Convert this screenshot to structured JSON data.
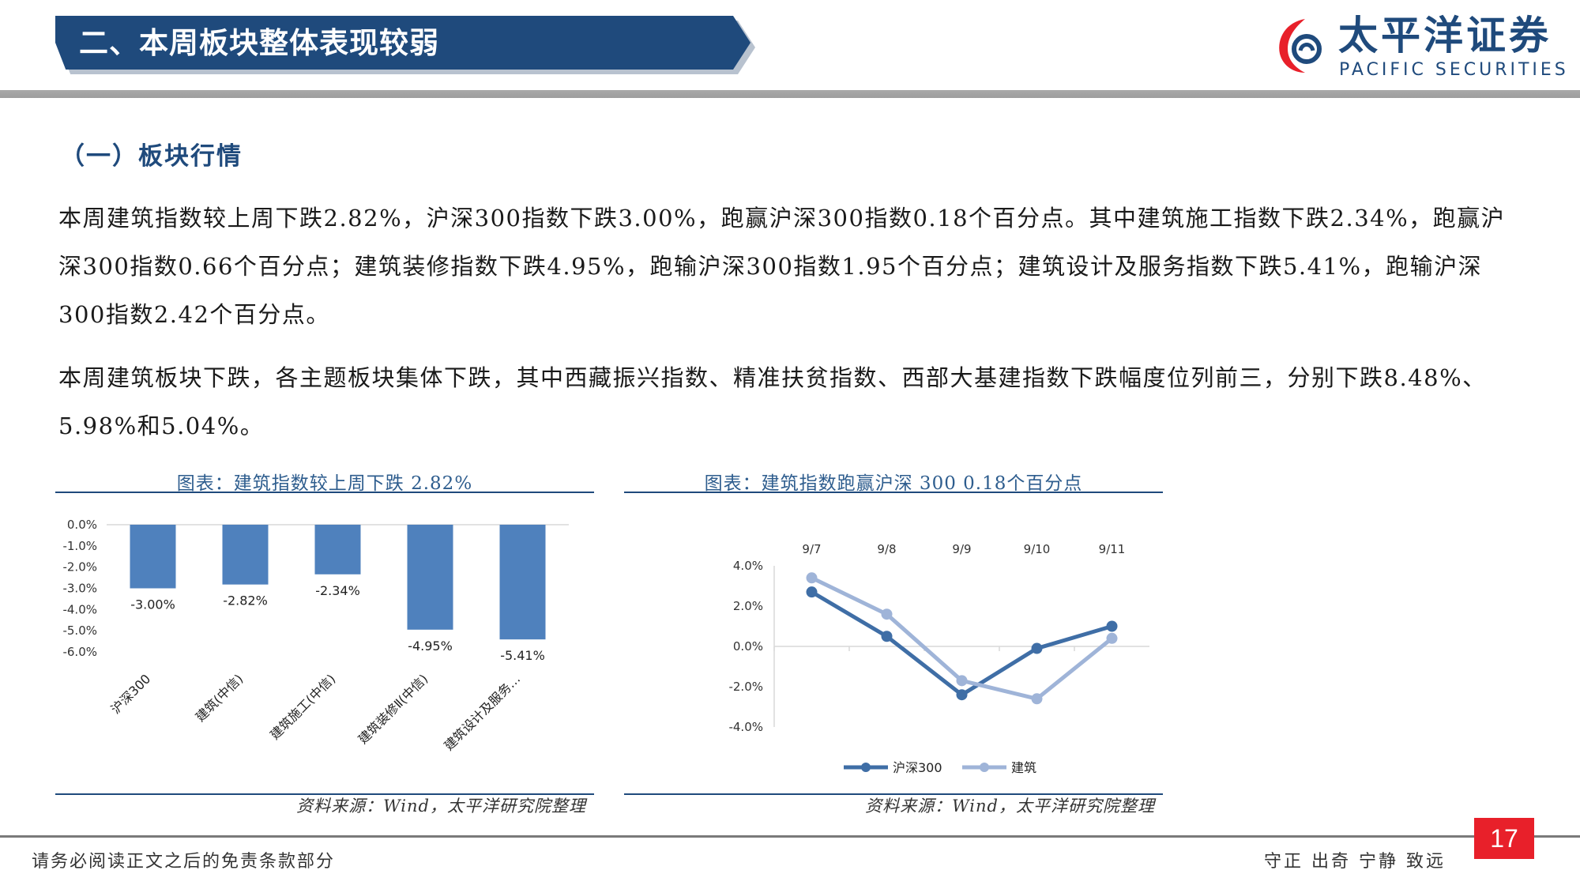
{
  "header": {
    "title": "二、本周板块整体表现较弱",
    "logo_cn": "太平洋证券",
    "logo_en": "PACIFIC SECURITIES"
  },
  "section_heading": "（一）板块行情",
  "paragraphs": [
    "本周建筑指数较上周下跌2.82%，沪深300指数下跌3.00%，跑赢沪深300指数0.18个百分点。其中建筑施工指数下跌2.34%，跑赢沪深300指数0.66个百分点；建筑装修指数下跌4.95%，跑输沪深300指数1.95个百分点；建筑设计及服务指数下跌5.41%，跑输沪深300指数2.42个百分点。",
    "本周建筑板块下跌，各主题板块集体下跌，其中西藏振兴指数、精准扶贫指数、西部大基建指数下跌幅度位列前三，分别下跌8.48%、5.98%和5.04%。"
  ],
  "charts": {
    "left": {
      "title": "图表：建筑指数较上周下跌 2.82%",
      "source": "资料来源：Wind，太平洋研究院整理"
    },
    "right": {
      "title": "图表：建筑指数跑赢沪深 300 0.18个百分点",
      "source": "资料来源：Wind，太平洋研究院整理"
    }
  },
  "chart_data": [
    {
      "type": "bar",
      "categories": [
        "沪深300",
        "建筑(中信)",
        "建筑施工(中信)",
        "建筑装修Ⅱ(中信)",
        "建筑设计及服务…"
      ],
      "values": [
        -3.0,
        -2.82,
        -2.34,
        -4.95,
        -5.41
      ],
      "data_labels": [
        "-3.00%",
        "-2.82%",
        "-2.34%",
        "-4.95%",
        "-5.41%"
      ],
      "ylim": [
        -6.0,
        0.0
      ],
      "yticks": [
        0.0,
        -1.0,
        -2.0,
        -3.0,
        -4.0,
        -5.0,
        -6.0
      ],
      "ytick_labels": [
        "0.0%",
        "-1.0%",
        "-2.0%",
        "-3.0%",
        "-4.0%",
        "-5.0%",
        "-6.0%"
      ],
      "bar_color": "#4f81bd",
      "legend": "none"
    },
    {
      "type": "line",
      "x": [
        "9/7",
        "9/8",
        "9/9",
        "9/10",
        "9/11"
      ],
      "series": [
        {
          "name": "沪深300",
          "values": [
            2.7,
            0.5,
            -2.4,
            -0.1,
            1.0
          ],
          "color": "#3f6ea6"
        },
        {
          "name": "建筑",
          "values": [
            3.4,
            1.6,
            -1.7,
            -2.6,
            0.4
          ],
          "color": "#9fb4d8"
        }
      ],
      "ylim": [
        -4.0,
        4.0
      ],
      "yticks": [
        4.0,
        2.0,
        0.0,
        -2.0,
        -4.0
      ],
      "ytick_labels": [
        "4.0%",
        "2.0%",
        "0.0%",
        "-2.0%",
        "-4.0%"
      ],
      "x_axis_position": "top",
      "legend": "bottom"
    }
  ],
  "footer": {
    "disclaimer": "请务必阅读正文之后的免责条款部分",
    "motto": "守正 出奇 宁静 致远",
    "page_number": "17"
  }
}
